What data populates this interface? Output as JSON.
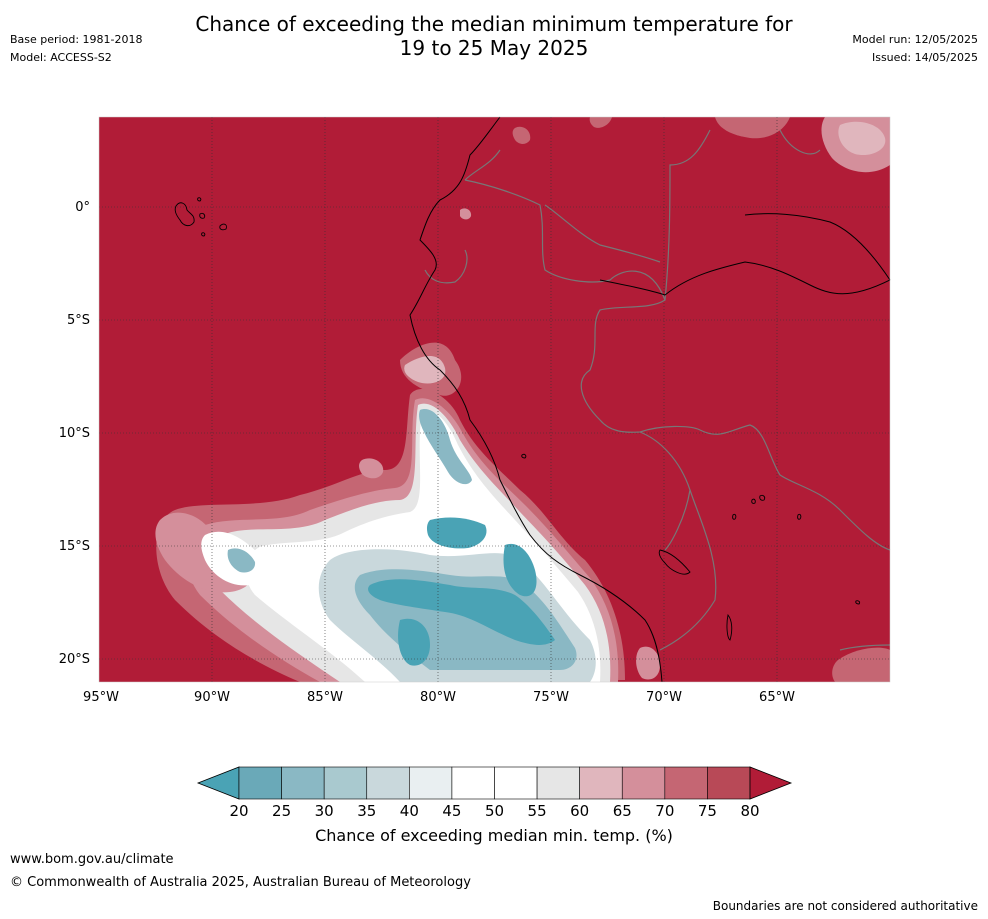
{
  "header": {
    "title_line1": "Chance of exceeding the median minimum temperature for",
    "title_line2": "19 to 25 May 2025",
    "base_period": "Base period: 1981-2018",
    "model": "Model: ACCESS-S2",
    "model_run": "Model run: 12/05/2025",
    "issued": "Issued: 14/05/2025"
  },
  "map": {
    "lat_labels": [
      "0°",
      "5°S",
      "10°S",
      "15°S",
      "20°S"
    ],
    "lat_values": [
      0,
      -5,
      -10,
      -15,
      -20
    ],
    "lon_labels": [
      "95°W",
      "90°W",
      "85°W",
      "80°W",
      "75°W",
      "70°W",
      "65°W"
    ],
    "lon_values": [
      -95,
      -90,
      -85,
      -80,
      -75,
      -70,
      -65
    ],
    "background_class_color": "#b11c37",
    "coast_color": "#000000",
    "border_color": "#777777"
  },
  "colorbar": {
    "label": "Chance of exceeding median min. temp. (%)",
    "ticks": [
      "20",
      "25",
      "30",
      "35",
      "40",
      "45",
      "50",
      "55",
      "60",
      "65",
      "70",
      "75",
      "80"
    ],
    "under_color": "#4aa3b5",
    "over_color": "#b11c37",
    "colors": [
      "#6aa9b8",
      "#8ab8c4",
      "#a9c9cf",
      "#c9d8dc",
      "#e9eff1",
      "#ffffff",
      "#ffffff",
      "#e6e6e6",
      "#e0b6bd",
      "#d48f9b",
      "#c56673",
      "#b84957"
    ]
  },
  "footer": {
    "url": "www.bom.gov.au/climate",
    "copyright": "© Commonwealth of Australia 2025, Australian Bureau of Meteorology",
    "disclaimer": "Boundaries are not considered authoritative"
  }
}
